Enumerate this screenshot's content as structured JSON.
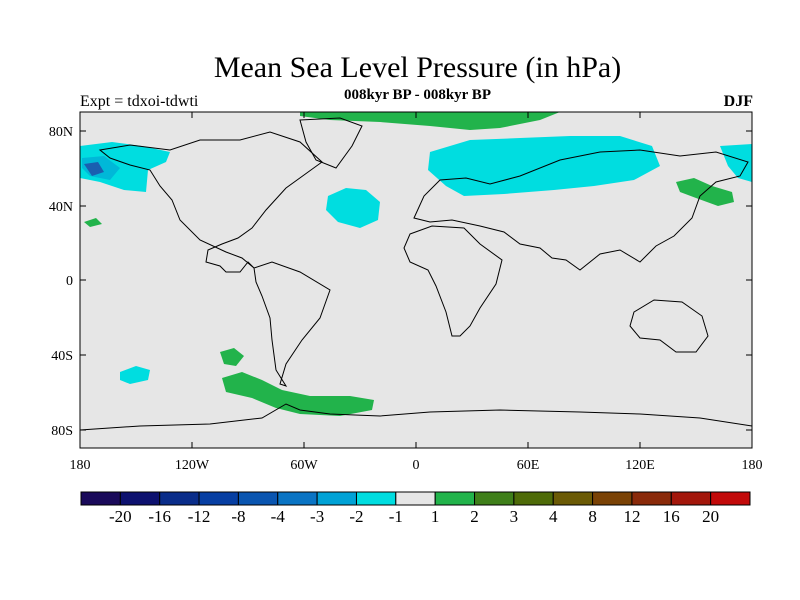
{
  "header": {
    "title": "Mean Sea Level Pressure (in hPa)",
    "subtitle": "008kyr BP - 008kyr BP",
    "experiment": "Expt = tdxoi-tdwti",
    "season": "DJF"
  },
  "axes": {
    "lat_ticks": [
      "80N",
      "40N",
      "0",
      "40S",
      "80S"
    ],
    "lon_ticks": [
      "180",
      "120W",
      "60W",
      "0",
      "60E",
      "120E",
      "180"
    ]
  },
  "colors": {
    "background": "#e6e6e6",
    "coast": "#000000",
    "cyan": "#00dde0",
    "cyan_dark": "#00b8d8",
    "blue": "#1a5fb0",
    "green": "#22b34b"
  },
  "legend": {
    "colors": [
      "#1a0a5a",
      "#0d116f",
      "#0a2d8a",
      "#073fa3",
      "#0a55b0",
      "#0a74c4",
      "#00a2d6",
      "#00dde0",
      "#e6e6e6",
      "#22b34b",
      "#3f7f1a",
      "#4e6b08",
      "#6b5a05",
      "#7a4205",
      "#8a2a0a",
      "#a3170b",
      "#c20a0a"
    ],
    "labels": [
      "-20",
      "-16",
      "-12",
      "-8",
      "-4",
      "-3",
      "-2",
      "-1",
      "1",
      "2",
      "3",
      "4",
      "8",
      "12",
      "16",
      "20"
    ]
  }
}
